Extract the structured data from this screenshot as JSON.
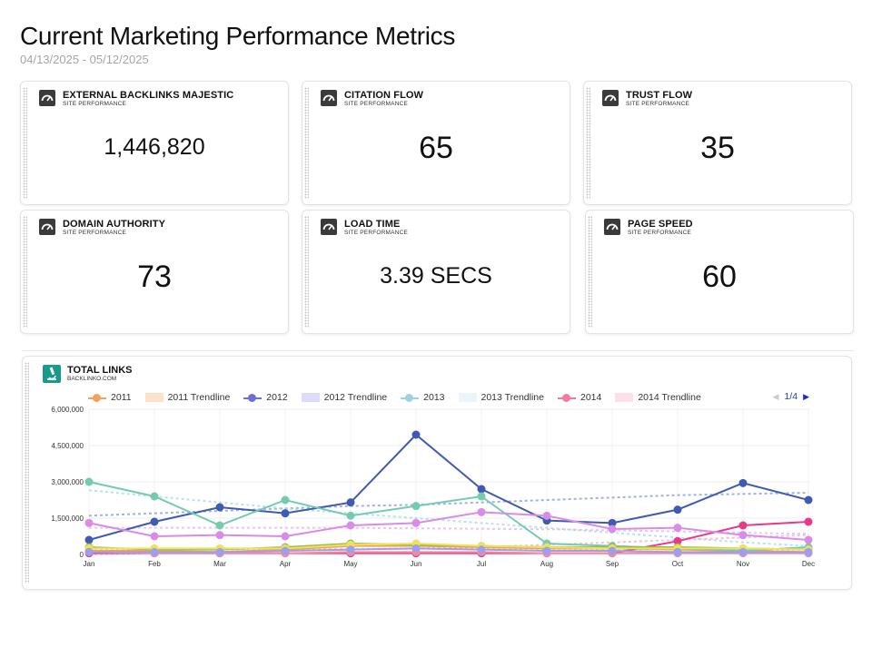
{
  "header": {
    "title": "Current Marketing Performance Metrics",
    "date_range": "04/13/2025 - 05/12/2025"
  },
  "cards": [
    {
      "label": "EXTERNAL BACKLINKS MAJESTIC",
      "sub": "SITE PERFORMANCE",
      "value": "1,446,820",
      "icon": "gauge-icon"
    },
    {
      "label": "CITATION FLOW",
      "sub": "SITE PERFORMANCE",
      "value": "65",
      "icon": "gauge-icon"
    },
    {
      "label": "TRUST FLOW",
      "sub": "SITE PERFORMANCE",
      "value": "35",
      "icon": "gauge-icon"
    },
    {
      "label": "DOMAIN AUTHORITY",
      "sub": "SITE PERFORMANCE",
      "value": "73",
      "icon": "gauge-icon"
    },
    {
      "label": "LOAD TIME",
      "sub": "SITE PERFORMANCE",
      "value": "3.39 SECS",
      "icon": "gauge-icon"
    },
    {
      "label": "PAGE SPEED",
      "sub": "SITE PERFORMANCE",
      "value": "60",
      "icon": "gauge-icon"
    }
  ],
  "chart": {
    "title": "TOTAL LINKS",
    "source": "BACKLINKO.COM",
    "logo": "microscope-icon",
    "legend": {
      "l2011": "2011",
      "l2011t": "2011 Trendline",
      "l2012": "2012",
      "l2012t": "2012 Trendline",
      "l2013": "2013",
      "l2013t": "2013 Trendline",
      "l2014": "2014",
      "l2014t": "2014 Trendline"
    },
    "pager": "1/4"
  },
  "chart_data": {
    "type": "line",
    "categories": [
      "Jan",
      "Feb",
      "Mar",
      "Apr",
      "May",
      "Jun",
      "Jul",
      "Aug",
      "Sep",
      "Oct",
      "Nov",
      "Dec"
    ],
    "ylim": [
      0,
      6000000
    ],
    "yticks": [
      "0",
      "1,500,000",
      "3,000,000",
      "4,500,000",
      "6,000,000"
    ],
    "ytick_values": [
      0,
      1500000,
      3000000,
      4500000,
      6000000
    ],
    "series": [
      {
        "name": "2011",
        "color": "#f4a15a",
        "values": [
          150000,
          150000,
          100000,
          200000,
          350000,
          350000,
          300000,
          250000,
          250000,
          200000,
          150000,
          100000
        ]
      },
      {
        "name": "2012",
        "color": "#3f5ab3",
        "values": [
          600000,
          1350000,
          1950000,
          1700000,
          2150000,
          4950000,
          2700000,
          1400000,
          1300000,
          1850000,
          2950000,
          2250000
        ]
      },
      {
        "name": "2013",
        "color": "#74cbb0",
        "values": [
          3000000,
          2400000,
          1200000,
          2250000,
          1600000,
          2000000,
          2400000,
          450000,
          350000,
          250000,
          150000,
          300000
        ]
      },
      {
        "name": "2014",
        "color": "#e8388a",
        "values": [
          50000,
          50000,
          50000,
          50000,
          50000,
          50000,
          50000,
          50000,
          50000,
          550000,
          1200000,
          1350000
        ]
      },
      {
        "name": "",
        "color": "#d98be8",
        "values": [
          1300000,
          750000,
          800000,
          750000,
          1200000,
          1300000,
          1750000,
          1600000,
          1050000,
          1100000,
          800000,
          600000
        ]
      },
      {
        "name": "",
        "color": "#8fc04a",
        "values": [
          300000,
          200000,
          200000,
          300000,
          450000,
          400000,
          350000,
          300000,
          300000,
          300000,
          250000,
          200000
        ]
      },
      {
        "name": "",
        "color": "#f2e05a",
        "values": [
          250000,
          250000,
          250000,
          250000,
          400000,
          450000,
          350000,
          300000,
          250000,
          250000,
          250000,
          200000
        ]
      },
      {
        "name": "",
        "color": "#f58a9a",
        "values": [
          100000,
          50000,
          50000,
          50000,
          100000,
          100000,
          100000,
          50000,
          50000,
          50000,
          50000,
          50000
        ]
      },
      {
        "name": "",
        "color": "#9aa0ee",
        "values": [
          100000,
          100000,
          100000,
          150000,
          200000,
          250000,
          200000,
          150000,
          150000,
          100000,
          100000,
          100000
        ]
      }
    ],
    "trendlines": [
      {
        "name": "2011 Trendline",
        "color": "#f7c08c",
        "values": [
          200000,
          200000,
          210000,
          220000,
          230000,
          235000,
          240000,
          230000,
          220000,
          210000,
          200000,
          190000
        ]
      },
      {
        "name": "2012 Trendline",
        "color": "#8a9ce0",
        "values": [
          1600000,
          1700000,
          1800000,
          1900000,
          2000000,
          2050000,
          2150000,
          2250000,
          2350000,
          2450000,
          2500000,
          2550000
        ]
      },
      {
        "name": "2013 Trendline",
        "color": "#a8d9e6",
        "values": [
          2650000,
          2400000,
          2150000,
          1900000,
          1700000,
          1500000,
          1300000,
          1100000,
          900000,
          700000,
          500000,
          350000
        ]
      },
      {
        "name": "2014 Trendline",
        "color": "#f4b0c7",
        "values": [
          0,
          50000,
          100000,
          150000,
          200000,
          250000,
          300000,
          400000,
          500000,
          600000,
          700000,
          800000
        ]
      },
      {
        "name": "",
        "color": "#e4b6ec",
        "values": [
          1100000,
          1100000,
          1100000,
          1100000,
          1100000,
          1080000,
          1060000,
          1040000,
          1000000,
          950000,
          900000,
          850000
        ]
      }
    ],
    "grid": true,
    "legend_position": "top"
  }
}
